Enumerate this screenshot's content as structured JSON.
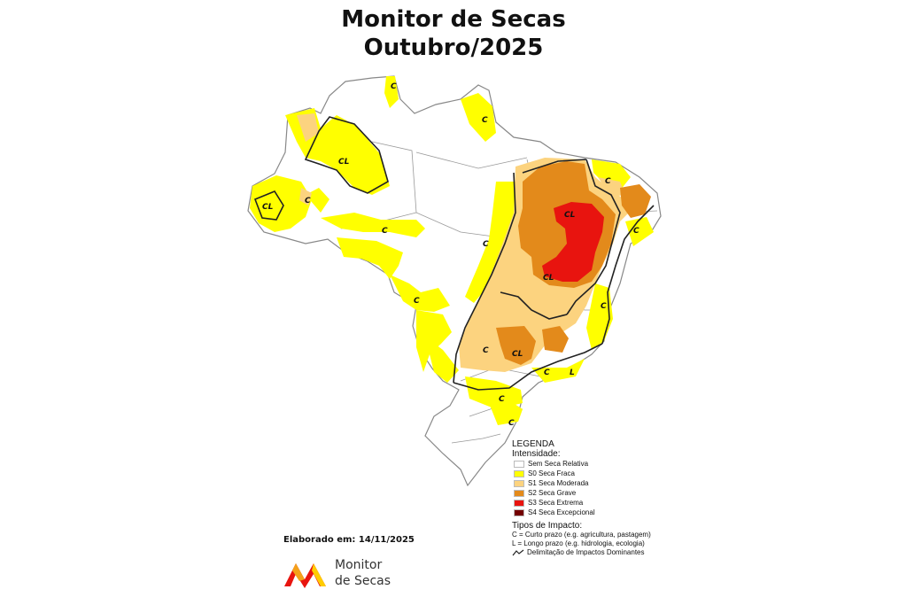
{
  "header": {
    "title_line1": "Monitor de Secas",
    "title_line2": "Outubro/2025"
  },
  "colors": {
    "sem_seca": "#ffffff",
    "s0": "#ffff00",
    "s1": "#fcd37f",
    "s2": "#e38a1b",
    "s3": "#e8140f",
    "s4": "#730000",
    "border": "#888888",
    "line": "#222222"
  },
  "map_labels": {
    "c": "C",
    "cl": "CL",
    "l": "L"
  },
  "legend": {
    "heading": "LEGENDA",
    "intensity_heading": "Intensidade:",
    "items": [
      {
        "label": "Sem Seca Relativa",
        "color": "#ffffff"
      },
      {
        "label": "S0 Seca Fraca",
        "color": "#ffff00"
      },
      {
        "label": "S1 Seca Moderada",
        "color": "#fcd37f"
      },
      {
        "label": "S2 Seca Grave",
        "color": "#e38a1b"
      },
      {
        "label": "S3 Seca Extrema",
        "color": "#e8140f"
      },
      {
        "label": "S4 Seca Excepcional",
        "color": "#730000"
      }
    ],
    "impact_heading": "Tipos de Impacto:",
    "impact_c": "C = Curto prazo (e.g. agricultura, pastagem)",
    "impact_l": "L = Longo prazo (e.g. hidrologia, ecologia)",
    "impact_line": "Delimitação de Impactos Dominantes"
  },
  "footer": {
    "elaborated": "Elaborado em: 14/11/2025",
    "logo_line1": "Monitor",
    "logo_line2": "de Secas"
  }
}
